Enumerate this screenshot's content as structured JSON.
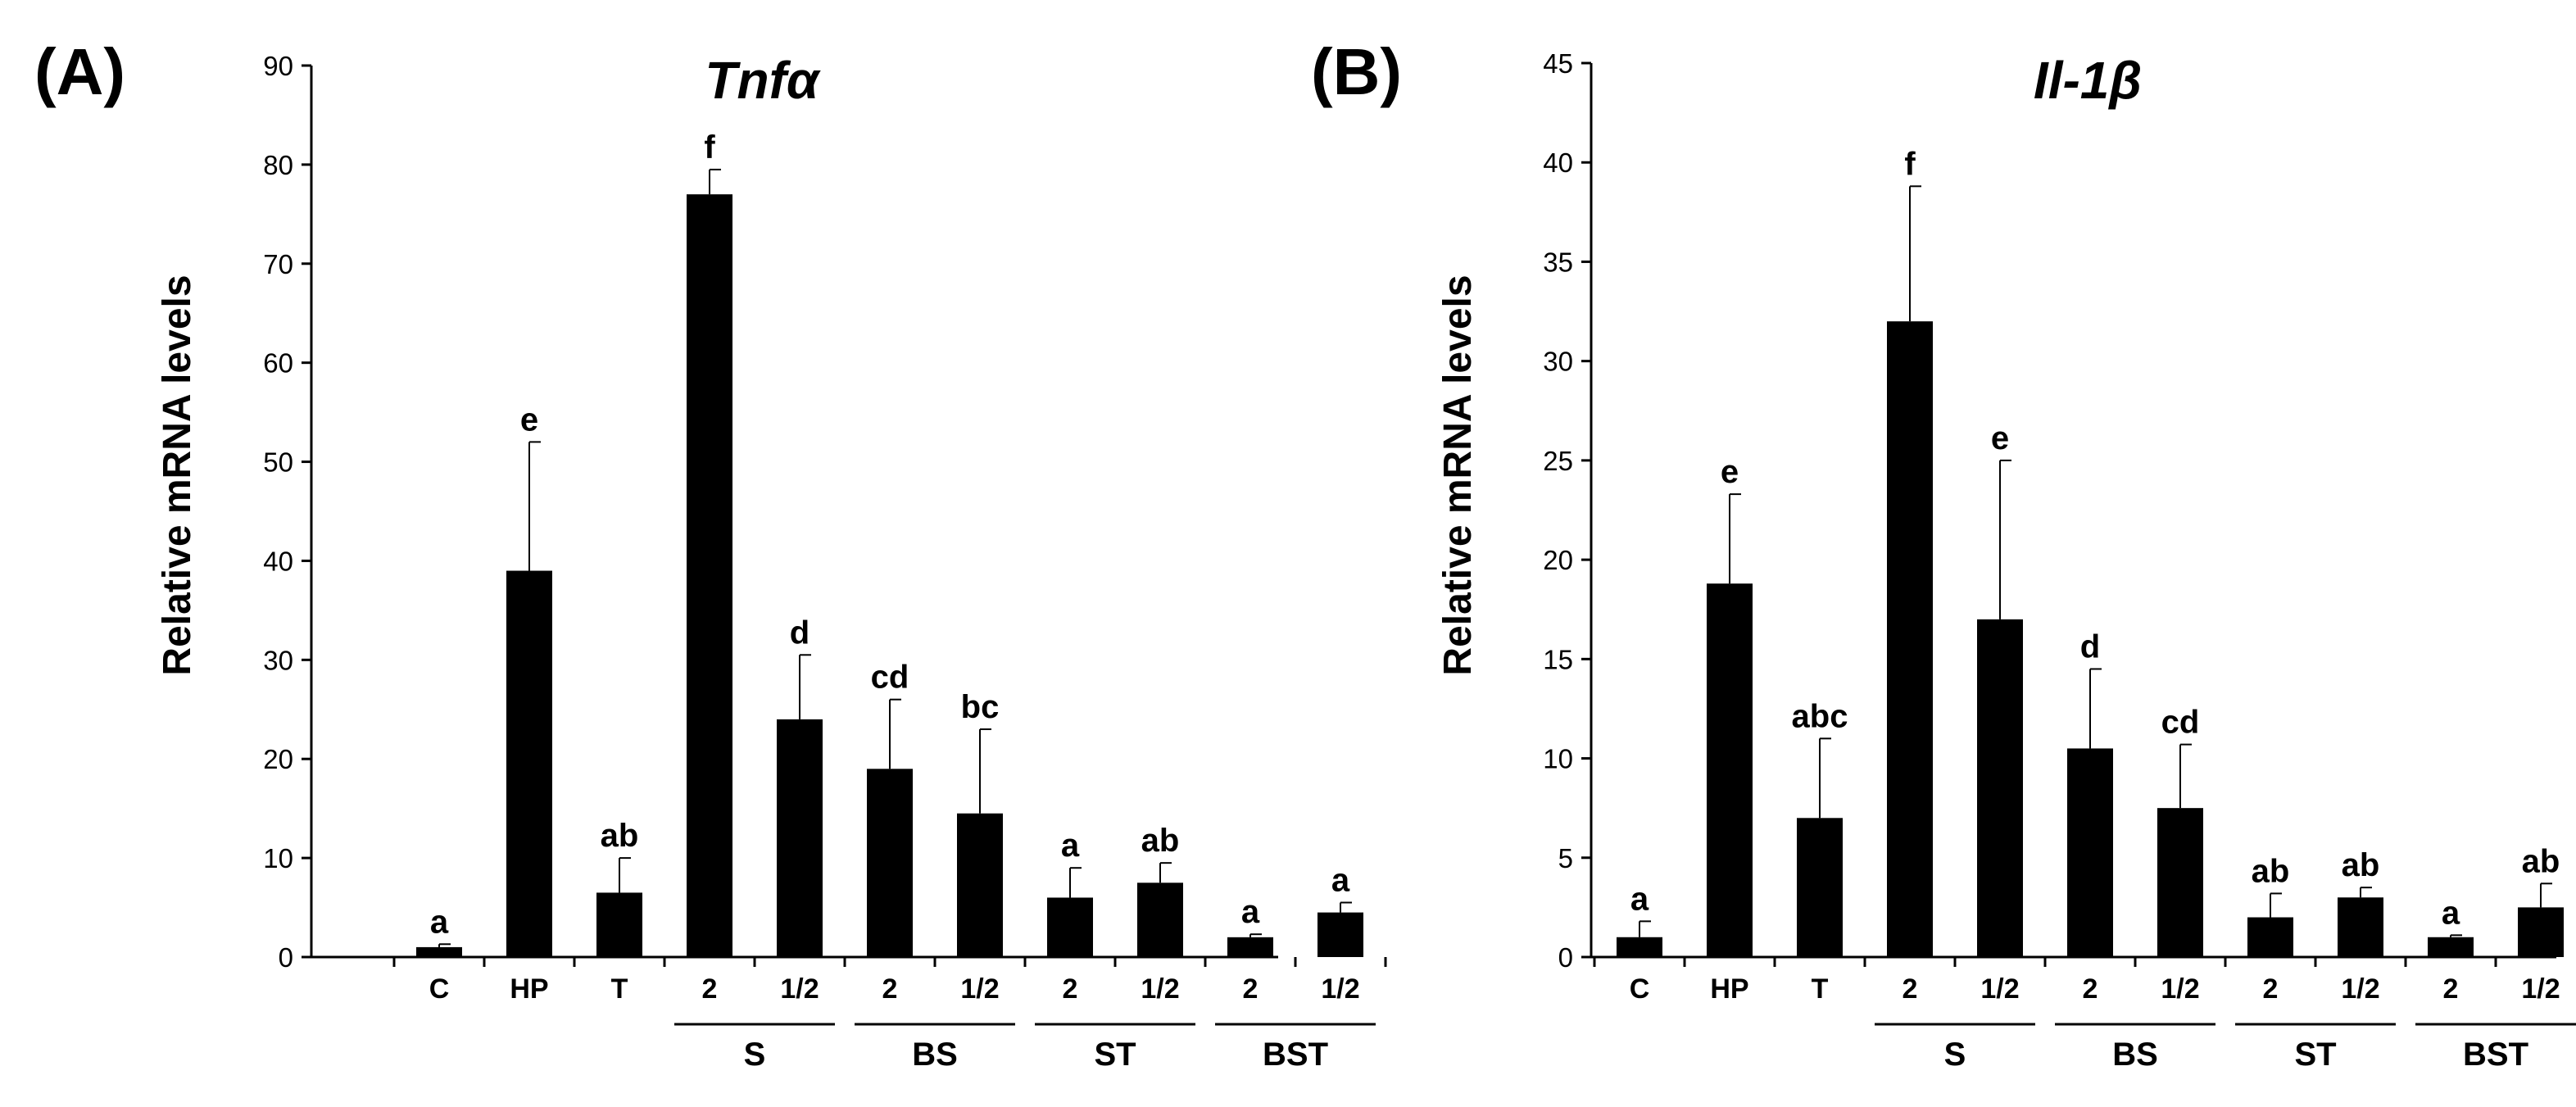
{
  "chart_data": [
    {
      "type": "bar",
      "panel_label": "(A)",
      "title": "Tnfα",
      "ylabel": "Relative mRNA levels",
      "xlabel": "",
      "ylim": [
        0,
        90
      ],
      "yticks": [
        "0",
        "10",
        "20",
        "30",
        "40",
        "50",
        "60",
        "70",
        "80",
        "90"
      ],
      "categories": [
        "C",
        "HP",
        "T",
        "2",
        "1/2",
        "2",
        "1/2",
        "2",
        "1/2",
        "2",
        "1/2"
      ],
      "values": [
        1,
        39,
        6.5,
        77,
        24,
        19,
        14.5,
        6,
        7.5,
        2,
        4.5
      ],
      "errors": [
        0.3,
        13,
        3.5,
        2.5,
        6.5,
        7,
        8.5,
        3,
        2,
        0.3,
        1
      ],
      "significance": [
        "a",
        "e",
        "ab",
        "f",
        "d",
        "cd",
        "bc",
        "a",
        "ab",
        "a",
        "a"
      ],
      "groups": [
        {
          "label": "S",
          "span": [
            3,
            4
          ]
        },
        {
          "label": "BS",
          "span": [
            5,
            6
          ]
        },
        {
          "label": "ST",
          "span": [
            7,
            8
          ]
        },
        {
          "label": "BST",
          "span": [
            9,
            10
          ]
        }
      ],
      "bar_color": "#000000"
    },
    {
      "type": "bar",
      "panel_label": "(B)",
      "title": "Il-1β",
      "ylabel": "Relative mRNA levels",
      "xlabel": "",
      "ylim": [
        0,
        45
      ],
      "yticks": [
        "0",
        "5",
        "10",
        "15",
        "20",
        "25",
        "30",
        "35",
        "40",
        "45"
      ],
      "categories": [
        "C",
        "HP",
        "T",
        "2",
        "1/2",
        "2",
        "1/2",
        "2",
        "1/2",
        "2",
        "1/2"
      ],
      "values": [
        1,
        18.8,
        7,
        32,
        17,
        10.5,
        7.5,
        2,
        3,
        1,
        2.5
      ],
      "errors": [
        0.8,
        4.5,
        4,
        6.8,
        8,
        4,
        3.2,
        1.2,
        0.5,
        0.1,
        1.2
      ],
      "significance": [
        "a",
        "e",
        "abc",
        "f",
        "e",
        "d",
        "cd",
        "ab",
        "ab",
        "a",
        "ab"
      ],
      "groups": [
        {
          "label": "S",
          "span": [
            3,
            4
          ]
        },
        {
          "label": "BS",
          "span": [
            5,
            6
          ]
        },
        {
          "label": "ST",
          "span": [
            7,
            8
          ]
        },
        {
          "label": "BST",
          "span": [
            9,
            10
          ]
        }
      ],
      "bar_color": "#000000"
    }
  ]
}
